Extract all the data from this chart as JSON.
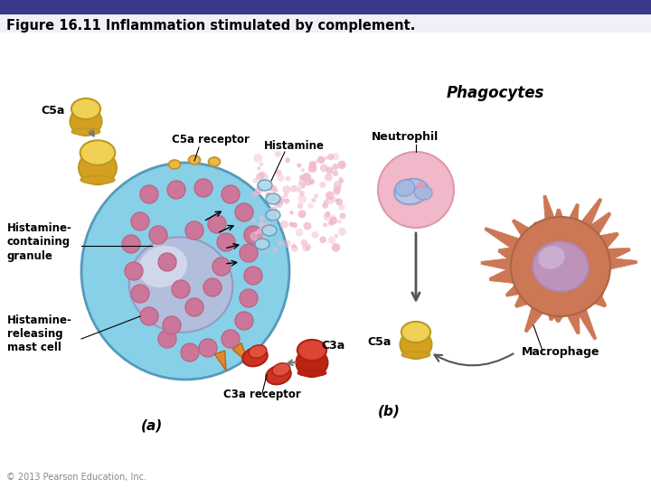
{
  "title": "Figure 16.11 Inflammation stimulated by complement.",
  "title_bar_color": "#3a3a8c",
  "title_bg_color": "#f0f0f8",
  "title_fontsize": 10.5,
  "copyright": "© 2013 Pearson Education, Inc.",
  "bg_color": "#ffffff",
  "labels": {
    "C5a_top": "C5a",
    "C5a_receptor": "C5a receptor",
    "Histamine": "Histamine",
    "Phagocytes": "Phagocytes",
    "Neutrophil": "Neutrophil",
    "Histamine_containing": "Histamine-\ncontaining\ngranule",
    "Histamine_releasing": "Histamine-\nreleasing\nmast cell",
    "C3a": "C3a",
    "C3a_receptor": "C3a receptor",
    "panel_a": "(a)",
    "panel_b": "(b)",
    "Macrophage": "Macrophage",
    "C5a_bottom": "C5a"
  },
  "colors": {
    "mast_cell_fill": "#87d0e8",
    "mast_cell_edge": "#5599bb",
    "nucleus_fill": "#c0b8d8",
    "nucleus_edge": "#9988bb",
    "nucleus_highlight": "#e8e4f0",
    "granule_fill": "#cc7799",
    "granule_edge": "#bb6688",
    "granule_dark": "#bb6688",
    "receptor_fill": "#e8b84a",
    "receptor_edge": "#c09020",
    "c3a_receptor_fill": "#cc3322",
    "c3a_receptor_edge": "#aa2211",
    "histamine_dot": "#f0b8cc",
    "spike_fill": "#dd8833",
    "spike_edge": "#bb6611",
    "neutrophil_fill": "#f0b8c8",
    "neutrophil_edge": "#dd99aa",
    "neutrophil_nucleus": "#8899cc",
    "macrophage_body": "#cc7755",
    "macrophage_nucleus": "#bb99cc",
    "macrophage_edge": "#aa6644",
    "arrow_color": "#555555",
    "label_color": "#000000",
    "c5a_fill": "#e8c040",
    "c5a_fill2": "#f0d870",
    "c5a_edge": "#bb9922",
    "c3a_fill": "#cc3322",
    "c3a_fill2": "#dd5544",
    "c3a_edge": "#aa2211"
  }
}
